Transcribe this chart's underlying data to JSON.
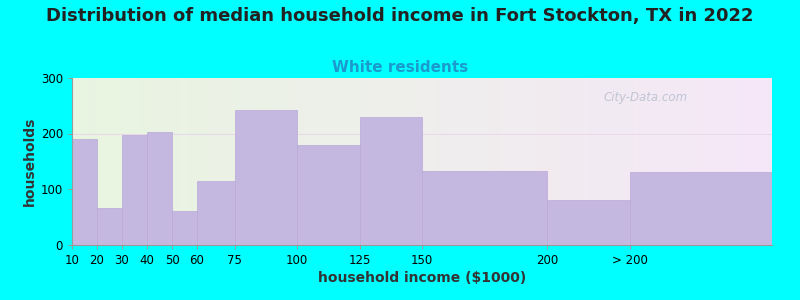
{
  "title": "Distribution of median household income in Fort Stockton, TX in 2022",
  "subtitle": "White residents",
  "xlabel": "household income ($1000)",
  "ylabel": "households",
  "background_color": "#00FFFF",
  "bar_color": "#c5b8e0",
  "bar_edge_color": "#b8a8d8",
  "values": [
    190,
    65,
    197,
    203,
    60,
    115,
    242,
    180,
    230,
    132,
    80,
    130
  ],
  "ylim": [
    0,
    300
  ],
  "yticks": [
    0,
    100,
    200,
    300
  ],
  "title_fontsize": 13,
  "subtitle_fontsize": 11,
  "subtitle_color": "#1a9acd",
  "axis_label_fontsize": 10,
  "tick_fontsize": 8.5,
  "watermark_text": "City-Data.com",
  "watermark_color": "#b8bece",
  "grid_color": "#e8d8e8",
  "bar_lefts": [
    10,
    20,
    30,
    40,
    50,
    60,
    75,
    100,
    125,
    150,
    200,
    233
  ],
  "bar_widths": [
    10,
    10,
    10,
    10,
    10,
    15,
    25,
    25,
    25,
    50,
    33,
    57
  ],
  "xtick_labels": [
    "10",
    "20",
    "30",
    "40",
    "50",
    "60",
    "75",
    "100",
    "125",
    "150",
    "200",
    "> 200"
  ],
  "xlim": [
    10,
    290
  ]
}
